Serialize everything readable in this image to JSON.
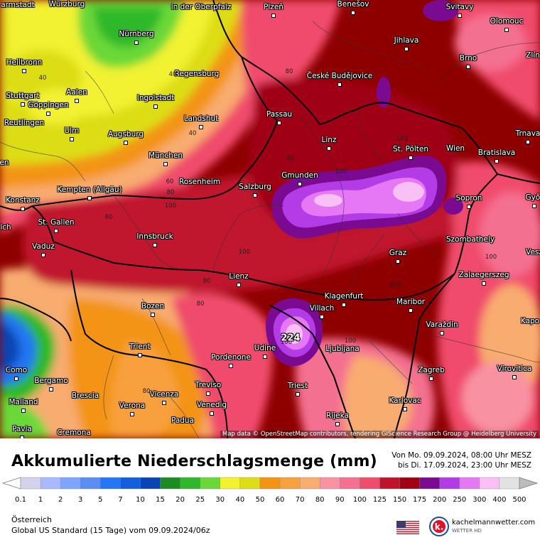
{
  "map": {
    "attribution": "Map data © OpenStreetMap contributors, rendering GIScience Research Group @ Heidelberg University",
    "max_label": "224",
    "cities": [
      {
        "name": "Würzburg"
      },
      {
        "name": "in der Oberpfalz"
      },
      {
        "name": "Plzeň"
      },
      {
        "name": "Benešov"
      },
      {
        "name": "Svitavy"
      },
      {
        "name": "Olomouc"
      },
      {
        "name": "Nürnberg"
      },
      {
        "name": "Jihlava"
      },
      {
        "name": "Heilbronn"
      },
      {
        "name": "Regensburg"
      },
      {
        "name": "České Budějovice"
      },
      {
        "name": "Brno"
      },
      {
        "name": "Aalen"
      },
      {
        "name": "Stuttgart"
      },
      {
        "name": "Ingolstadt"
      },
      {
        "name": "Göppingen"
      },
      {
        "name": "Landshut"
      },
      {
        "name": "Passau"
      },
      {
        "name": "Reutlingen"
      },
      {
        "name": "Ulm"
      },
      {
        "name": "Augsburg"
      },
      {
        "name": "Trnava"
      },
      {
        "name": "Linz"
      },
      {
        "name": "St. Pölten"
      },
      {
        "name": "Wien"
      },
      {
        "name": "Bratislava"
      },
      {
        "name": "München"
      },
      {
        "name": "Gmunden"
      },
      {
        "name": "Kempten (Allgäu)"
      },
      {
        "name": "Rosenheim"
      },
      {
        "name": "Salzburg"
      },
      {
        "name": "Sopron"
      },
      {
        "name": "Győr"
      },
      {
        "name": "Konstanz"
      },
      {
        "name": "St. Gallen"
      },
      {
        "name": "Innsbruck"
      },
      {
        "name": "Szombathely"
      },
      {
        "name": "Vaduz"
      },
      {
        "name": "Graz"
      },
      {
        "name": "Lienz"
      },
      {
        "name": "Zalaegerszeg"
      },
      {
        "name": "Klagenfurt"
      },
      {
        "name": "Villach"
      },
      {
        "name": "Bozen"
      },
      {
        "name": "Maribor"
      },
      {
        "name": "Varaždin"
      },
      {
        "name": "Kapo"
      },
      {
        "name": "Trient"
      },
      {
        "name": "Udine"
      },
      {
        "name": "Ljubljana"
      },
      {
        "name": "Pordenone"
      },
      {
        "name": "Como"
      },
      {
        "name": "Bergamo"
      },
      {
        "name": "Treviso"
      },
      {
        "name": "Zagreb"
      },
      {
        "name": "Virovitica"
      },
      {
        "name": "Triest"
      },
      {
        "name": "Brescia"
      },
      {
        "name": "Vicenza"
      },
      {
        "name": "Mailand"
      },
      {
        "name": "Verona"
      },
      {
        "name": "Venedig"
      },
      {
        "name": "Karlovac"
      },
      {
        "name": "Padua"
      },
      {
        "name": "Rijeka"
      },
      {
        "name": "Pavia"
      },
      {
        "name": "Cremona"
      },
      {
        "name": "Zlín"
      },
      {
        "name": "Vesz"
      },
      {
        "name": "armstadt"
      },
      {
        "name": "ich"
      },
      {
        "name": "en"
      }
    ],
    "isolines": [
      "40",
      "80",
      "40",
      "40",
      "80",
      "100",
      "60",
      "80",
      "100",
      "100",
      "100",
      "80",
      "80",
      "100",
      "100",
      "80",
      "100",
      "100",
      "80"
    ]
  },
  "header": {
    "title": "Akkumulierte Niederschlagsmenge (mm)",
    "period_from": "Von Mo. 09.09.2024, 08:00 Uhr MESZ",
    "period_to": "bis Di. 17.09.2024, 23:00 Uhr MESZ"
  },
  "legend": {
    "ticks": [
      "0.1",
      "1",
      "2",
      "3",
      "5",
      "7",
      "10",
      "15",
      "20",
      "25",
      "30",
      "40",
      "50",
      "60",
      "70",
      "80",
      "90",
      "100",
      "125",
      "150",
      "175",
      "200",
      "250",
      "300",
      "400",
      "500"
    ],
    "colors": [
      "#d2d2ec",
      "#aab9ff",
      "#7fa6ff",
      "#5a8ef0",
      "#2476f2",
      "#1460dc",
      "#0a44b4",
      "#1c8c22",
      "#2fb82c",
      "#6ad838",
      "#f2f230",
      "#dddd16",
      "#f39414",
      "#f7a03e",
      "#f8ac70",
      "#f892a3",
      "#f47090",
      "#f04c6c",
      "#c0142e",
      "#a00014",
      "#7a0a90",
      "#b43ce6",
      "#e678f6",
      "#f8c0f4",
      "#e2e2e2",
      "#bdbdbd"
    ]
  },
  "footer": {
    "region": "Österreich",
    "model": "Global US Standard (15 Tage) vom  09.09.2024/06z",
    "logo_text": "kachelmannwetter.com",
    "logo_sub": "WETTER HD"
  }
}
